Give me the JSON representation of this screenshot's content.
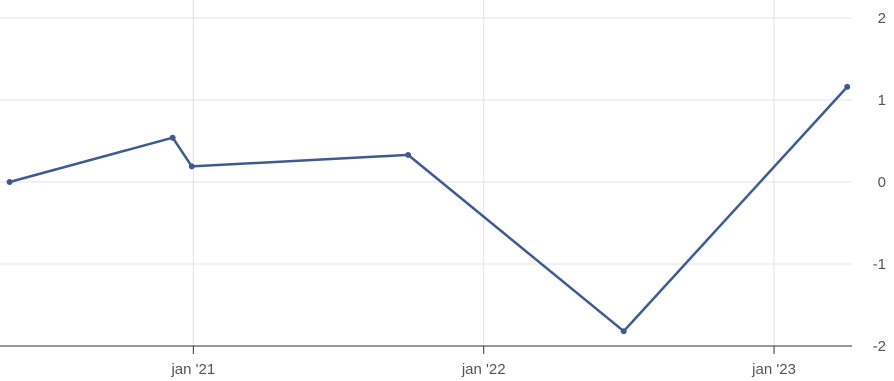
{
  "chart_data": {
    "type": "line",
    "x_axis": {
      "type": "date",
      "range": [
        "2020-05-13",
        "2023-04-09"
      ],
      "ticks": [
        {
          "date": "2021-01-01",
          "label": "jan '21"
        },
        {
          "date": "2022-01-01",
          "label": "jan '22"
        },
        {
          "date": "2023-01-01",
          "label": "jan '23"
        }
      ]
    },
    "y_axis": {
      "position": "right",
      "range": [
        -2,
        2
      ],
      "ticks": [
        {
          "value": 2,
          "label": "2"
        },
        {
          "value": 1,
          "label": "1"
        },
        {
          "value": 0,
          "label": "0"
        },
        {
          "value": -1,
          "label": "-1"
        },
        {
          "value": -2,
          "label": "-2"
        }
      ]
    },
    "grid": true,
    "legend": "none",
    "series": [
      {
        "color": "#3f5a8f",
        "points": [
          {
            "x": "2020-05-15",
            "y": 0.0
          },
          {
            "x": "2020-12-06",
            "y": 0.54
          },
          {
            "x": "2020-12-30",
            "y": 0.19
          },
          {
            "x": "2021-09-28",
            "y": 0.33
          },
          {
            "x": "2022-06-26",
            "y": -1.82
          },
          {
            "x": "2023-04-03",
            "y": 1.16
          }
        ]
      }
    ]
  }
}
